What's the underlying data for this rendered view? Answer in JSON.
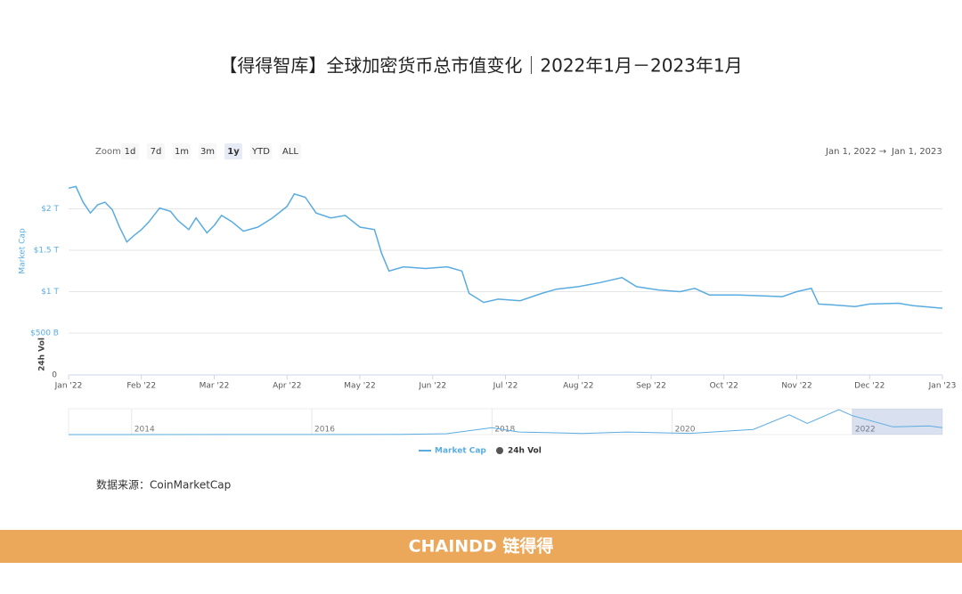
{
  "chart_data": [
    {
      "type": "line",
      "title": "【得得智库】全球加密货币总市值变化｜2022年1月－2023年1月",
      "zoom_label": "Zoom",
      "zoom_buttons": [
        "1d",
        "7d",
        "1m",
        "3m",
        "1y",
        "YTD",
        "ALL"
      ],
      "zoom_selected": "1y",
      "range_from": "Jan 1, 2022",
      "range_separator": "→",
      "range_to": "Jan 1, 2023",
      "ylabel": "Market Cap",
      "volume_label": "24h Vol",
      "volume_ticks": [
        0
      ],
      "volume_legend": "24h Vol",
      "volume_color": "#555555",
      "xlim": [
        0,
        12
      ],
      "xticks": [
        {
          "value": 0,
          "label": "Jan '22"
        },
        {
          "value": 1,
          "label": "Feb '22"
        },
        {
          "value": 2,
          "label": "Mar '22"
        },
        {
          "value": 3,
          "label": "Apr '22"
        },
        {
          "value": 4,
          "label": "May '22"
        },
        {
          "value": 5,
          "label": "Jun '22"
        },
        {
          "value": 6,
          "label": "Jul '22"
        },
        {
          "value": 7,
          "label": "Aug '22"
        },
        {
          "value": 8,
          "label": "Sep '22"
        },
        {
          "value": 9,
          "label": "Oct '22"
        },
        {
          "value": 10,
          "label": "Nov '22"
        },
        {
          "value": 11,
          "label": "Dec '22"
        },
        {
          "value": 12,
          "label": "Jan '23"
        }
      ],
      "ylim": [
        0.5,
        2.5
      ],
      "yticks": [
        {
          "value": 0.5,
          "label": "$500 B"
        },
        {
          "value": 1,
          "label": "$1 T"
        },
        {
          "value": 1.5,
          "label": "$1.5 T"
        },
        {
          "value": 2,
          "label": "$2 T"
        }
      ],
      "grid": true,
      "x": [
        0,
        0.1,
        0.2,
        0.3,
        0.4,
        0.5,
        0.6,
        0.7,
        0.8,
        0.9,
        1.0,
        1.1,
        1.25,
        1.4,
        1.5,
        1.65,
        1.75,
        1.9,
        2.0,
        2.1,
        2.25,
        2.4,
        2.6,
        2.8,
        3.0,
        3.1,
        3.25,
        3.4,
        3.6,
        3.8,
        4.0,
        4.2,
        4.3,
        4.4,
        4.6,
        4.9,
        5.2,
        5.4,
        5.5,
        5.7,
        5.9,
        6.2,
        6.5,
        6.7,
        7.0,
        7.3,
        7.6,
        7.8,
        8.1,
        8.4,
        8.6,
        8.8,
        9.2,
        9.5,
        9.8,
        10.0,
        10.2,
        10.3,
        10.5,
        10.8,
        11.0,
        11.4,
        11.6,
        12.0
      ],
      "series": [
        {
          "name": "Market Cap",
          "color": "#5aace0",
          "values": [
            2.25,
            2.27,
            2.08,
            1.95,
            2.05,
            2.08,
            1.99,
            1.78,
            1.6,
            1.68,
            1.75,
            1.84,
            2.01,
            1.97,
            1.86,
            1.75,
            1.89,
            1.71,
            1.8,
            1.92,
            1.84,
            1.73,
            1.78,
            1.89,
            2.03,
            2.18,
            2.14,
            1.95,
            1.89,
            1.92,
            1.78,
            1.75,
            1.46,
            1.25,
            1.3,
            1.28,
            1.3,
            1.25,
            0.98,
            0.87,
            0.91,
            0.89,
            0.98,
            1.03,
            1.06,
            1.11,
            1.17,
            1.06,
            1.02,
            1.0,
            1.04,
            0.96,
            0.96,
            0.95,
            0.94,
            1.0,
            1.04,
            0.85,
            0.84,
            0.82,
            0.85,
            0.86,
            0.83,
            0.8
          ]
        }
      ]
    },
    {
      "type": "navigator",
      "xlim": [
        2013.3,
        2023.0
      ],
      "ylim": [
        0,
        3
      ],
      "xticks": [
        2014,
        2016,
        2018,
        2020,
        2022
      ],
      "selection": [
        2022,
        2023
      ],
      "color": "#5aace0",
      "x": [
        2013.3,
        2016.0,
        2017.0,
        2017.5,
        2018.0,
        2018.3,
        2019.0,
        2019.5,
        2020.2,
        2020.9,
        2021.3,
        2021.5,
        2021.85,
        2022.0,
        2022.45,
        2022.85,
        2023.0
      ],
      "values": [
        0,
        0.01,
        0.02,
        0.1,
        0.8,
        0.3,
        0.13,
        0.3,
        0.15,
        0.6,
        2.3,
        1.3,
        2.9,
        2.2,
        0.9,
        1.0,
        0.8
      ]
    }
  ],
  "source": "数据来源：CoinMarketCap",
  "footer": "CHAINDD 链得得"
}
